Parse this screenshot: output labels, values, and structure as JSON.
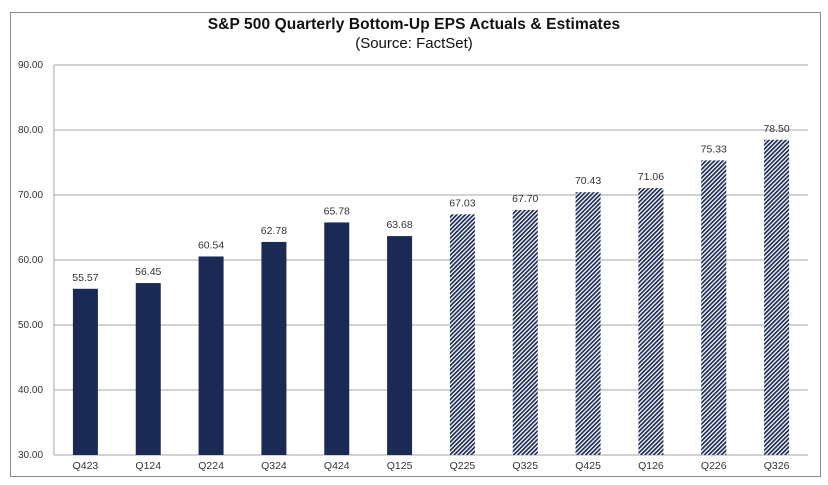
{
  "chart_data": {
    "type": "bar",
    "title": "S&P 500 Quarterly Bottom-Up EPS Actuals & Estimates",
    "subtitle": "(Source: FactSet)",
    "xlabel": "",
    "ylabel": "",
    "ylim": [
      30,
      90
    ],
    "yticks": [
      30,
      40,
      50,
      60,
      70,
      80,
      90
    ],
    "ytick_labels": [
      "30.00",
      "40.00",
      "50.00",
      "60.00",
      "70.00",
      "80.00",
      "90.00"
    ],
    "grid": true,
    "legend": "none",
    "categories": [
      "Q423",
      "Q124",
      "Q224",
      "Q324",
      "Q424",
      "Q125",
      "Q225",
      "Q325",
      "Q425",
      "Q126",
      "Q226",
      "Q326"
    ],
    "values": [
      55.57,
      56.45,
      60.54,
      62.78,
      65.78,
      63.68,
      67.03,
      67.7,
      70.43,
      71.06,
      75.33,
      78.5
    ],
    "value_labels": [
      "55.57",
      "56.45",
      "60.54",
      "62.78",
      "65.78",
      "63.68",
      "67.03",
      "67.70",
      "70.43",
      "71.06",
      "75.33",
      "78.50"
    ],
    "series_kind": [
      "actual",
      "actual",
      "actual",
      "actual",
      "actual",
      "actual",
      "estimate",
      "estimate",
      "estimate",
      "estimate",
      "estimate",
      "estimate"
    ],
    "colors": {
      "actual": "#1b2a55",
      "estimate_stripe": "#1b2a55",
      "estimate_bg": "#ffffff",
      "grid": "#a6a6a6"
    }
  }
}
